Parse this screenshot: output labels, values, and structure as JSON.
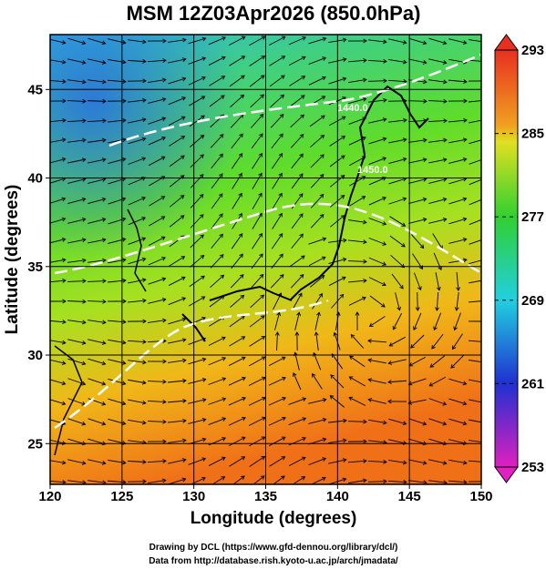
{
  "title": "MSM 12Z03Apr2026 (850.0hPa)",
  "x_axis": {
    "label": "Longitude (degrees)",
    "lim": [
      120,
      150
    ],
    "ticks": [
      120,
      125,
      130,
      135,
      140,
      145,
      150
    ]
  },
  "y_axis": {
    "label": "Latitude  (degrees)",
    "lim": [
      22.7,
      48.1
    ],
    "ticks": [
      25,
      30,
      35,
      40,
      45
    ]
  },
  "colorbar": {
    "lim": [
      253,
      293
    ],
    "ticks": [
      253,
      261,
      269,
      277,
      285,
      293
    ]
  },
  "contour_labels": [
    "1440.0",
    "1450.0"
  ],
  "footer": [
    "Drawing by DCL (https://www.gfd-dennou.org/library/dcl/)",
    "Data from http://database.rish.kyoto-u.ac.jp/arch/jmadata/"
  ]
}
